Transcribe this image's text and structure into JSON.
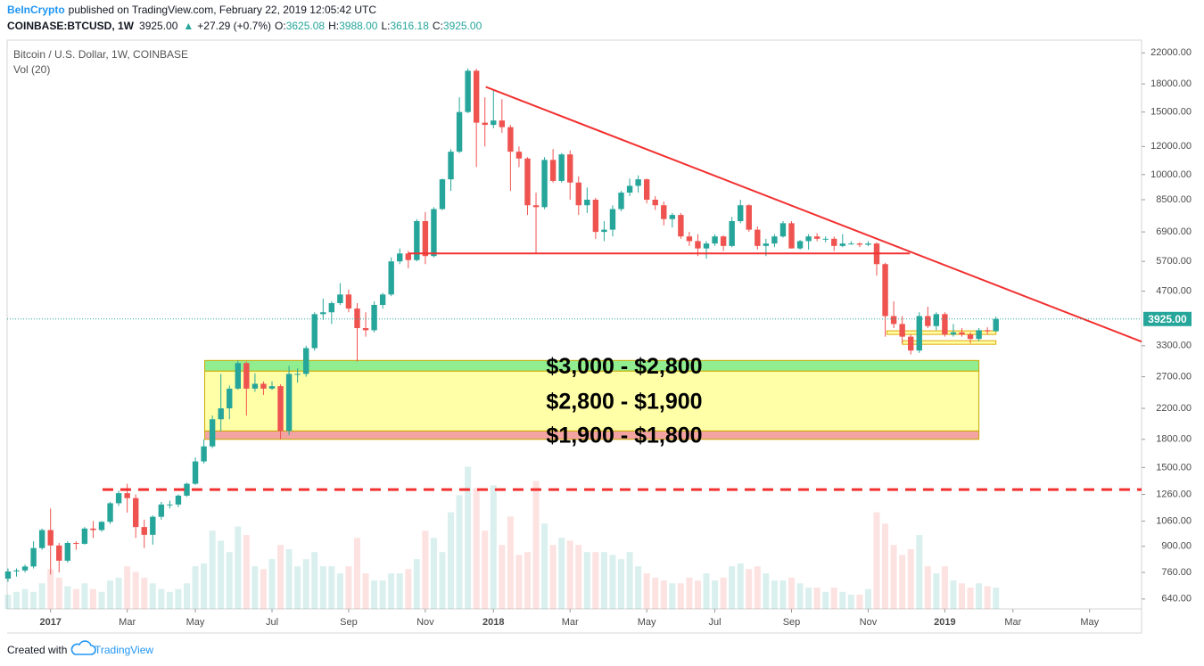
{
  "header": {
    "publisher": "BeInCrypto",
    "published": "published on TradingView.com, February 22, 2019 12:05:42 UTC",
    "symbol": "COINBASE:BTCUSD, 1W",
    "last": "3925.00",
    "change_arrow": "▲",
    "change": "+27.29 (+0.7%)",
    "ohlc_labels": [
      "O:",
      "H:",
      "L:",
      "C:"
    ],
    "ohlc_printed": [
      "3625.08",
      "3988.00",
      "3616.18",
      "3925.00"
    ]
  },
  "footer": {
    "created": "Created with",
    "brand": "TradingView"
  },
  "chart_data": {
    "type": "candlestick",
    "title": "Bitcoin / U.S. Dollar, 1W, COINBASE",
    "subtitle": "Vol (20)",
    "log_scale": true,
    "grid": false,
    "up_color": "#26a69a",
    "down_color": "#ef5350",
    "ylim": [
      600,
      23900
    ],
    "yticks": [
      {
        "value": 22000,
        "label": "22000.00"
      },
      {
        "value": 18000,
        "label": "18000.00"
      },
      {
        "value": 15000,
        "label": "15000.00"
      },
      {
        "value": 12000,
        "label": "12000.00"
      },
      {
        "value": 10000,
        "label": "10000.00"
      },
      {
        "value": 8500,
        "label": "8500.00"
      },
      {
        "value": 6900,
        "label": "6900.00"
      },
      {
        "value": 5700,
        "label": "5700.00"
      },
      {
        "value": 4700,
        "label": "4700.00"
      },
      {
        "value": 3300,
        "label": "3300.00"
      },
      {
        "value": 2700,
        "label": "2700.00"
      },
      {
        "value": 2200,
        "label": "2200.00"
      },
      {
        "value": 1800,
        "label": "1800.00"
      },
      {
        "value": 1500,
        "label": "1500.00"
      },
      {
        "value": 1260,
        "label": "1260.00"
      },
      {
        "value": 1060,
        "label": "1060.00"
      },
      {
        "value": 900,
        "label": "900.00"
      },
      {
        "value": 760,
        "label": "760.00"
      },
      {
        "value": 640,
        "label": "640.00"
      }
    ],
    "xlim": [
      -0.1,
      133.1
    ],
    "xticks": [
      {
        "value": 5,
        "label": "2017"
      },
      {
        "value": 14,
        "label": "Mar"
      },
      {
        "value": 22,
        "label": "May"
      },
      {
        "value": 31,
        "label": "Jul"
      },
      {
        "value": 40,
        "label": "Sep"
      },
      {
        "value": 49,
        "label": "Nov"
      },
      {
        "value": 57,
        "label": "2018"
      },
      {
        "value": 66,
        "label": "Mar"
      },
      {
        "value": 75,
        "label": "May"
      },
      {
        "value": 83,
        "label": "Jul"
      },
      {
        "value": 92,
        "label": "Sep"
      },
      {
        "value": 101,
        "label": "Nov"
      },
      {
        "value": 110,
        "label": "2019"
      },
      {
        "value": 118,
        "label": "Mar"
      },
      {
        "value": 127,
        "label": "May"
      }
    ],
    "ohlc": [
      [
        730,
        780,
        715,
        765
      ],
      [
        765,
        780,
        740,
        770
      ],
      [
        770,
        800,
        760,
        790
      ],
      [
        790,
        930,
        780,
        890
      ],
      [
        890,
        1010,
        880,
        1000
      ],
      [
        1000,
        1150,
        750,
        905
      ],
      [
        905,
        920,
        760,
        820
      ],
      [
        820,
        930,
        810,
        920
      ],
      [
        920,
        930,
        880,
        915
      ],
      [
        915,
        1020,
        910,
        1010
      ],
      [
        1010,
        1060,
        950,
        1000
      ],
      [
        1000,
        1060,
        990,
        1055
      ],
      [
        1055,
        1200,
        1040,
        1190
      ],
      [
        1190,
        1290,
        1170,
        1270
      ],
      [
        1270,
        1350,
        1120,
        1230
      ],
      [
        1230,
        1260,
        950,
        1020
      ],
      [
        1020,
        1070,
        890,
        970
      ],
      [
        970,
        1100,
        910,
        1090
      ],
      [
        1090,
        1200,
        1070,
        1180
      ],
      [
        1180,
        1210,
        1150,
        1180
      ],
      [
        1180,
        1260,
        1160,
        1250
      ],
      [
        1250,
        1360,
        1240,
        1350
      ],
      [
        1350,
        1600,
        1340,
        1560
      ],
      [
        1560,
        1800,
        1540,
        1720
      ],
      [
        1720,
        2100,
        1700,
        2050
      ],
      [
        2050,
        2750,
        1900,
        2200
      ],
      [
        2200,
        2550,
        2050,
        2500
      ],
      [
        2500,
        3000,
        2480,
        2950
      ],
      [
        2950,
        2980,
        2100,
        2500
      ],
      [
        2500,
        2760,
        2450,
        2580
      ],
      [
        2580,
        2620,
        2400,
        2500
      ],
      [
        2500,
        2620,
        2480,
        2540
      ],
      [
        2540,
        2570,
        1800,
        1900
      ],
      [
        1900,
        2900,
        1850,
        2750
      ],
      [
        2750,
        2850,
        2600,
        2750
      ],
      [
        2750,
        3300,
        2700,
        3250
      ],
      [
        3250,
        4100,
        3200,
        4050
      ],
      [
        4050,
        4480,
        3900,
        4100
      ],
      [
        4100,
        4400,
        3800,
        4350
      ],
      [
        4350,
        4950,
        4300,
        4600
      ],
      [
        4600,
        4750,
        4100,
        4200
      ],
      [
        4200,
        4350,
        2980,
        3700
      ],
      [
        3700,
        4100,
        3500,
        3650
      ],
      [
        3650,
        4400,
        3600,
        4300
      ],
      [
        4300,
        4650,
        4200,
        4600
      ],
      [
        4600,
        5850,
        4550,
        5700
      ],
      [
        5700,
        6200,
        5600,
        6000
      ],
      [
        6000,
        6100,
        5450,
        5750
      ],
      [
        5750,
        7500,
        5700,
        7400
      ],
      [
        7400,
        7850,
        5600,
        5900
      ],
      [
        5900,
        8100,
        5850,
        8000
      ],
      [
        8000,
        9750,
        7950,
        9700
      ],
      [
        9700,
        11800,
        9000,
        11600
      ],
      [
        11600,
        16500,
        11500,
        15000
      ],
      [
        15000,
        19900,
        14900,
        19600
      ],
      [
        19600,
        19850,
        10500,
        14000
      ],
      [
        14000,
        16500,
        12000,
        13800
      ],
      [
        13800,
        17250,
        13500,
        14200
      ],
      [
        14200,
        16300,
        13100,
        13600
      ],
      [
        13600,
        13800,
        9000,
        11600
      ],
      [
        11600,
        12000,
        10500,
        11100
      ],
      [
        11100,
        11200,
        7700,
        8200
      ],
      [
        8200,
        8900,
        6000,
        8100
      ],
      [
        8100,
        11200,
        8000,
        11000
      ],
      [
        11000,
        11800,
        9500,
        9600
      ],
      [
        9600,
        11500,
        9500,
        11400
      ],
      [
        11400,
        11700,
        8500,
        9500
      ],
      [
        9500,
        9900,
        7700,
        8200
      ],
      [
        8200,
        9200,
        7800,
        8500
      ],
      [
        8500,
        8600,
        6600,
        6900
      ],
      [
        6900,
        7400,
        6500,
        7000
      ],
      [
        7000,
        8200,
        6700,
        8000
      ],
      [
        8000,
        9000,
        7900,
        8900
      ],
      [
        8900,
        9750,
        8700,
        9300
      ],
      [
        9300,
        9950,
        8900,
        9700
      ],
      [
        9700,
        9750,
        8300,
        8500
      ],
      [
        8500,
        8700,
        7950,
        8200
      ],
      [
        8200,
        8400,
        7200,
        7500
      ],
      [
        7500,
        7800,
        7100,
        7700
      ],
      [
        7700,
        7800,
        6600,
        6700
      ],
      [
        6700,
        6900,
        6300,
        6500
      ],
      [
        6500,
        6800,
        5900,
        6200
      ],
      [
        6200,
        6500,
        5800,
        6400
      ],
      [
        6400,
        6800,
        6300,
        6700
      ],
      [
        6700,
        6750,
        6100,
        6300
      ],
      [
        6300,
        7600,
        6250,
        7400
      ],
      [
        7400,
        8500,
        7300,
        8200
      ],
      [
        8200,
        8250,
        6900,
        7000
      ],
      [
        7000,
        7150,
        6150,
        6300
      ],
      [
        6300,
        6600,
        5900,
        6400
      ],
      [
        6400,
        6800,
        6250,
        6700
      ],
      [
        6700,
        7400,
        6650,
        7300
      ],
      [
        7300,
        7400,
        6200,
        6200
      ],
      [
        6200,
        6550,
        6150,
        6500
      ],
      [
        6500,
        6800,
        6150,
        6700
      ],
      [
        6700,
        6850,
        6500,
        6600
      ],
      [
        6600,
        6700,
        6450,
        6600
      ],
      [
        6600,
        6700,
        6100,
        6300
      ],
      [
        6300,
        6800,
        6250,
        6400
      ],
      [
        6400,
        6500,
        6350,
        6400
      ],
      [
        6400,
        6450,
        6250,
        6350
      ],
      [
        6350,
        6500,
        6300,
        6400
      ],
      [
        6400,
        6450,
        5200,
        5600
      ],
      [
        5600,
        5650,
        3500,
        4000
      ],
      [
        4000,
        4400,
        3700,
        3800
      ],
      [
        3800,
        4000,
        3350,
        3500
      ],
      [
        3500,
        3550,
        3120,
        3200
      ],
      [
        3200,
        4100,
        3150,
        4000
      ],
      [
        4000,
        4250,
        3700,
        3750
      ],
      [
        3750,
        4100,
        3650,
        4050
      ],
      [
        4050,
        4100,
        3500,
        3550
      ],
      [
        3550,
        3800,
        3500,
        3600
      ],
      [
        3600,
        3700,
        3500,
        3550
      ],
      [
        3550,
        3600,
        3350,
        3450
      ],
      [
        3450,
        3700,
        3400,
        3650
      ],
      [
        3650,
        3720,
        3550,
        3625
      ],
      [
        3625.08,
        3988,
        3616.18,
        3925
      ]
    ],
    "volume_lim": [
      0,
      400
    ],
    "volume": [
      10,
      12,
      14,
      12,
      18,
      28,
      22,
      16,
      14,
      18,
      14,
      12,
      20,
      22,
      30,
      26,
      22,
      18,
      14,
      12,
      14,
      18,
      30,
      32,
      55,
      48,
      40,
      58,
      52,
      30,
      28,
      35,
      45,
      42,
      30,
      35,
      40,
      30,
      30,
      25,
      30,
      50,
      25,
      20,
      20,
      25,
      25,
      28,
      35,
      55,
      50,
      40,
      68,
      80,
      100,
      85,
      55,
      87,
      45,
      65,
      38,
      40,
      90,
      60,
      45,
      50,
      48,
      45,
      40,
      40,
      40,
      38,
      35,
      40,
      30,
      25,
      22,
      20,
      18,
      18,
      22,
      20,
      25,
      20,
      22,
      30,
      32,
      28,
      30,
      25,
      20,
      20,
      22,
      18,
      15,
      15,
      12,
      15,
      12,
      10,
      10,
      14,
      68,
      60,
      45,
      38,
      42,
      52,
      30,
      25,
      30,
      20,
      18,
      15,
      18,
      16,
      15
    ],
    "zones": [
      {
        "from": 3000,
        "to": 2800,
        "x": [
          23.1,
          114
        ],
        "color": "#90ee90",
        "label": "$3,000 - $2,800"
      },
      {
        "from": 2800,
        "to": 1900,
        "x": [
          23.1,
          114
        ],
        "color": "#ffffa8",
        "label": "$2,800 - $1,900"
      },
      {
        "from": 1900,
        "to": 1800,
        "x": [
          23.1,
          114
        ],
        "color": "#f4a3a3",
        "label": "$1,900 - $1,800"
      }
    ],
    "ranges": [
      {
        "from": 3635,
        "to": 3552,
        "x": [
          103.2,
          116
        ]
      },
      {
        "from": 3410,
        "to": 3332,
        "x": [
          105,
          116
        ]
      }
    ],
    "lines": [
      {
        "x": [
          56.1,
          133.1
        ],
        "y": [
          17660,
          3390
        ],
        "color": "#f23030",
        "dashed": false
      },
      {
        "x": [
          47,
          105.9
        ],
        "y": [
          6000,
          6000
        ],
        "color": "#f23030",
        "dashed": false
      },
      {
        "x": [
          11.1,
          133.1
        ],
        "y": [
          1300,
          1300
        ],
        "color": "#f23030",
        "dashed": true
      }
    ]
  }
}
